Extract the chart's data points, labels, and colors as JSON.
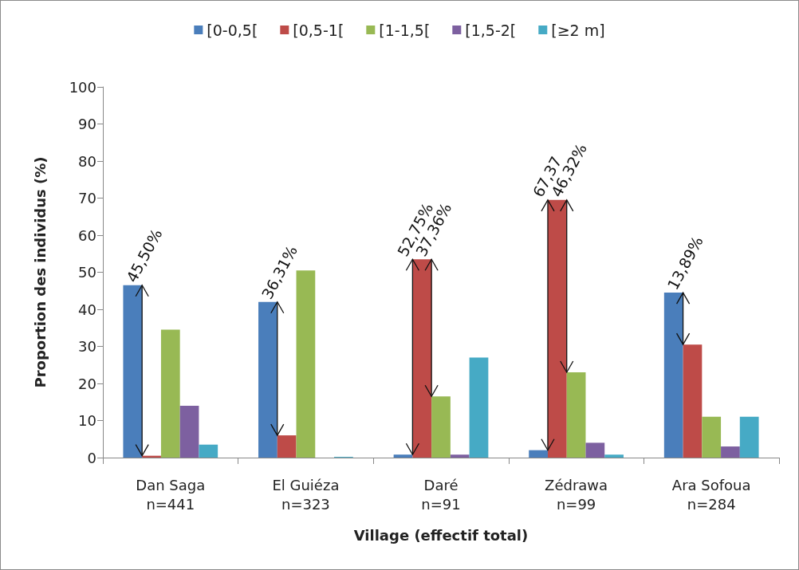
{
  "chart_data": {
    "type": "bar",
    "ylabel": "Proportion des individus (%)",
    "xlabel": "Village (effectif total)",
    "categories": [
      "Dan Saga\nn=441",
      "El Guiéza\nn=323",
      "Daré\nn=91",
      "Zédrawa\nn=99",
      "Ara Sofoua\nn=284"
    ],
    "series": [
      {
        "name": "[0-0,5[",
        "color": "#4a7ebb",
        "values": [
          46.5,
          42,
          0.8,
          2,
          44.5
        ]
      },
      {
        "name": "[0,5-1[",
        "color": "#be4b48",
        "values": [
          0.5,
          6,
          53.5,
          69.5,
          30.5
        ]
      },
      {
        "name": "[1-1,5[",
        "color": "#98b954",
        "values": [
          34.5,
          50.5,
          16.5,
          23,
          11
        ]
      },
      {
        "name": "[1,5-2[",
        "color": "#7d60a0",
        "values": [
          14,
          0,
          0.8,
          4,
          3
        ]
      },
      {
        "name": "[≥2 m]",
        "color": "#46aac5",
        "values": [
          3.5,
          0.2,
          27,
          0.8,
          11
        ]
      }
    ],
    "annotations": [
      {
        "text": "45,50%",
        "y": 46.5
      },
      {
        "text": "36,31%",
        "y": 42
      },
      {
        "text": "52,75%",
        "y": 53.5
      },
      {
        "text": "37,36%",
        "y": 53.5
      },
      {
        "text": "67,37",
        "y": 69.5
      },
      {
        "text": "46,32%",
        "y": 69.5
      },
      {
        "text": "13,89%",
        "y": 44.5
      }
    ],
    "ylim": [
      0,
      100
    ],
    "yticks": [
      0,
      10,
      20,
      30,
      40,
      50,
      60,
      70,
      80,
      90,
      100
    ],
    "grid": false,
    "legend": "top"
  }
}
